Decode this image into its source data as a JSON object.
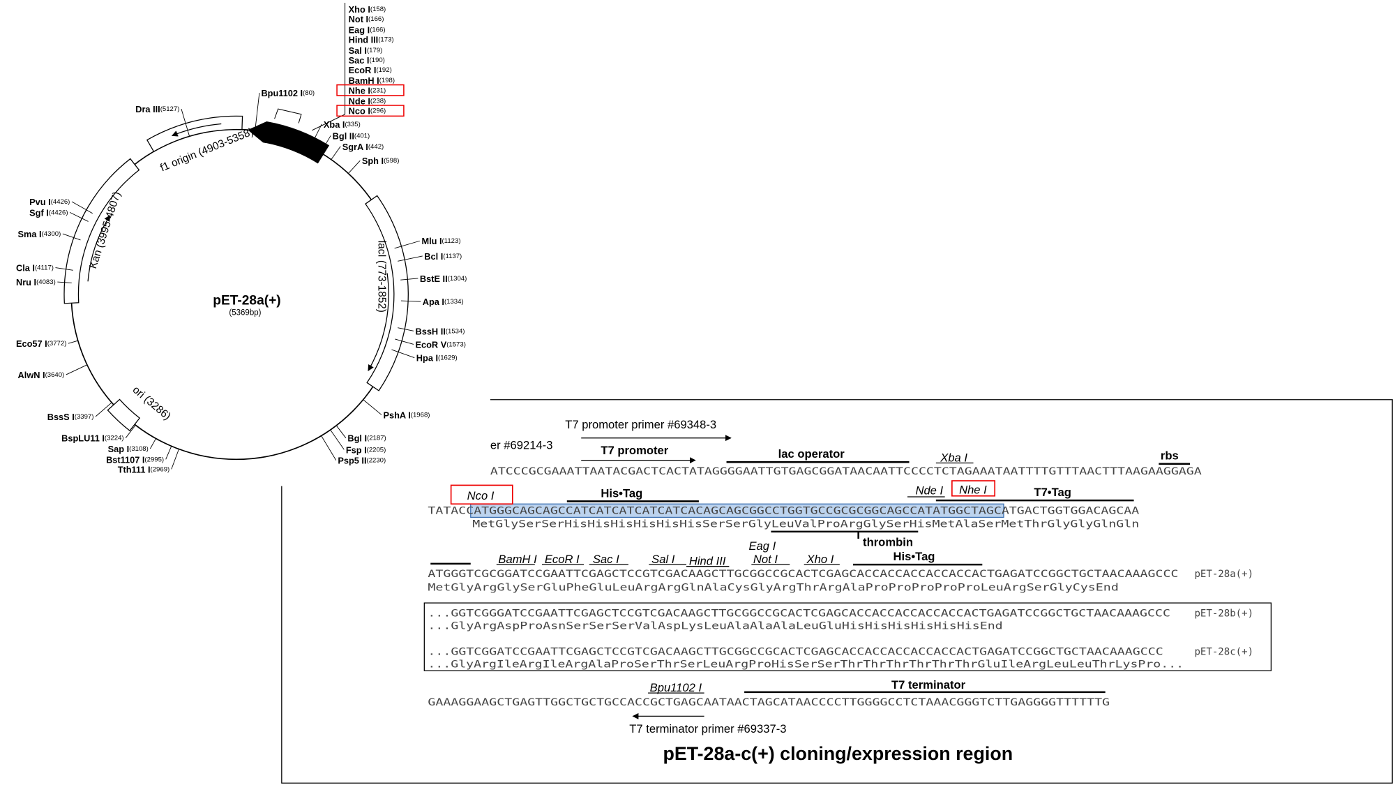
{
  "plasmid_map": {
    "name": "pET-28a(+)",
    "size": "(5369bp)",
    "features": [
      {
        "label": "f1 origin (4903-5358)"
      },
      {
        "label": "Kan (3995-4807)"
      },
      {
        "label": "lacI (773-1852)"
      },
      {
        "label": "ori (3286)"
      }
    ],
    "sites": [
      {
        "name": "Xho I",
        "position": "(158)"
      },
      {
        "name": "Not I",
        "position": "(166)"
      },
      {
        "name": "Eag I",
        "position": "(166)"
      },
      {
        "name": "Hind III",
        "position": "(173)"
      },
      {
        "name": "Sal I",
        "position": "(179)"
      },
      {
        "name": "Sac I",
        "position": "(190)"
      },
      {
        "name": "EcoR I",
        "position": "(192)"
      },
      {
        "name": "BamH I",
        "position": "(198)"
      },
      {
        "name": "Nhe I",
        "position": "(231)"
      },
      {
        "name": "Nde I",
        "position": "(238)"
      },
      {
        "name": "Nco I",
        "position": "(296)"
      },
      {
        "name": "Bpu1102 I",
        "position": "(80)"
      },
      {
        "name": "Xba I",
        "position": "(335)"
      },
      {
        "name": "Bgl II",
        "position": "(401)"
      },
      {
        "name": "SgrA I",
        "position": "(442)"
      },
      {
        "name": "Sph I",
        "position": "(598)"
      },
      {
        "name": "Mlu I",
        "position": "(1123)"
      },
      {
        "name": "Bcl I",
        "position": "(1137)"
      },
      {
        "name": "BstE II",
        "position": "(1304)"
      },
      {
        "name": "Apa I",
        "position": "(1334)"
      },
      {
        "name": "BssH II",
        "position": "(1534)"
      },
      {
        "name": "EcoR V",
        "position": "(1573)"
      },
      {
        "name": "Hpa I",
        "position": "(1629)"
      },
      {
        "name": "PshA I",
        "position": "(1968)"
      },
      {
        "name": "Bgl I",
        "position": "(2187)"
      },
      {
        "name": "Fsp I",
        "position": "(2205)"
      },
      {
        "name": "Psp5 II",
        "position": "(2230)"
      },
      {
        "name": "Tth111 I",
        "position": "(2969)"
      },
      {
        "name": "Bst1107 I",
        "position": "(2995)"
      },
      {
        "name": "Sap I",
        "position": "(3108)"
      },
      {
        "name": "BspLU11 I",
        "position": "(3224)"
      },
      {
        "name": "BssS I",
        "position": "(3397)"
      },
      {
        "name": "AlwN I",
        "position": "(3640)"
      },
      {
        "name": "Eco57 I",
        "position": "(3772)"
      },
      {
        "name": "Nru I",
        "position": "(4083)"
      },
      {
        "name": "Cla I",
        "position": "(4117)"
      },
      {
        "name": "Sma I",
        "position": "(4300)"
      },
      {
        "name": "Sgf I",
        "position": "(4426)"
      },
      {
        "name": "Pvu I",
        "position": "(4426)"
      },
      {
        "name": "Dra III",
        "position": "(5127)"
      }
    ]
  },
  "cloning_region": {
    "title": "pET-28a-c(+) cloning/expression region",
    "primers": [
      "T7 promoter primer #69348-3",
      "er #69214-3",
      "T7 terminator primer #69337-3"
    ],
    "elements": [
      "T7 promoter",
      "lac operator",
      "rbs",
      "His•Tag",
      "T7•Tag",
      "thrombin",
      "His•Tag",
      "T7 terminator"
    ],
    "sites": [
      "Xba I",
      "Nco I",
      "Nde I",
      "Nhe I",
      "BamH I",
      "EcoR I",
      "Sac I",
      "Sal I",
      "Hind III",
      "Eag I",
      "Not I",
      "Xho I",
      "Bpu1102 I"
    ],
    "sequences": [
      "ATCCCGCGAAATTAATACGACTCACTATAGGGGAATTGTGAGCGGATAACAATTCCCCTCTAGAAATAATTTTGTTTAACTTTAAGAAGGAGA",
      "TATACCATGGGCAGCAGCCATCATCATCATCATCACAGCAGCGGCCTGGTGCCGCGCGGCAGCCATATGGCTAGCATGACTGGTGGACAGCAA",
      "MetGlySerSerHisHisHisHisHisHisSerSerGlyLeuValProArgGlySerHisMetAlaSerMetThrGlyGlyGlnGln",
      "ATGGGTCGCGGATCCGAATTCGAGCTCCGTCGACAAGCTTGCGGCCGCACTCGAGCACCACCACCACCACCACTGAGATCCGGCTGCTAACAAAGCCC",
      "MetGlyArgGlySerGluPheGluLeuArgArgGlnAlaCysGlyArgThrArgAlaProProProProProLeuArgSerGlyCysEnd",
      "...GGTCGGGATCCGAATTCGAGCTCCGTCGACAAGCTTGCGGCCGCACTCGAGCACCACCACCACCACCACTGAGATCCGGCTGCTAACAAAGCCC",
      "...GlyArgAspProAsnSerSerSerValAspLysLeuAlaAlaAlaLeuGluHisHisHisHisHisHisEnd",
      "...GGTCGGATCCGAATTCGAGCTCCGTCGACAAGCTTGCGGCCGCACTCGAGCACCACCACCACCACCACTGAGATCCGGCTGCTAACAAAGCCC",
      "...GlyArgIleArgIleArgAlaProSerThrSerLeuArgProHisSerSerThrThrThrThrThrThrGluIleArgLeuLeuThrLysPro...",
      "GAAAGGAAGCTGAGTTGGCTGCTGCCACCGCTGAGCAATAACTAGCATAACCCCTTGGGGCCTCTAAACGGGTCTTGAGGGGTTTTTTG"
    ],
    "variants": [
      "pET-28a(+)",
      "pET-28b(+)",
      "pET-28c(+)"
    ]
  }
}
